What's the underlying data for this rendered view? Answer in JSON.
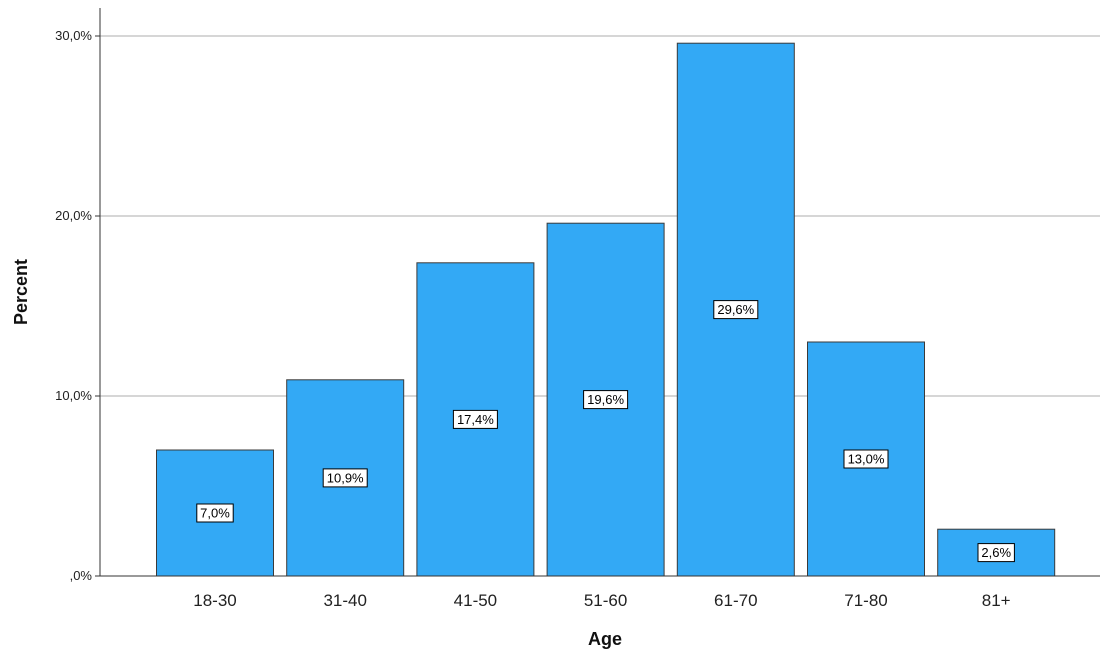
{
  "chart_data": {
    "type": "bar",
    "title": "",
    "xlabel": "Age",
    "ylabel": "Percent",
    "categories": [
      "18-30",
      "31-40",
      "41-50",
      "51-60",
      "61-70",
      "71-80",
      "81+"
    ],
    "values": [
      7.0,
      10.9,
      17.4,
      19.6,
      29.6,
      13.0,
      2.6
    ],
    "data_labels": [
      "7,0%",
      "10,9%",
      "17,4%",
      "19,6%",
      "29,6%",
      "13,0%",
      "2,6%"
    ],
    "ylim": [
      0,
      30
    ],
    "y_ticks": [
      0,
      10,
      20,
      30
    ],
    "y_tick_labels": [
      ",0%",
      "10,0%",
      "20,0%",
      "30,0%"
    ],
    "grid": true,
    "bar_color": "#33a9f5",
    "bar_edge_color": "#3a3a3a",
    "gridline_color": "#c8c8c8"
  }
}
